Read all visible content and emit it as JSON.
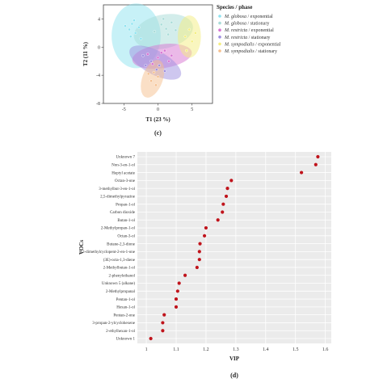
{
  "chart_data": [
    {
      "type": "scatter",
      "panel_label": "(c)",
      "xlabel": "T1 (23 %)",
      "ylabel": "T2 (11 %)",
      "xlim": [
        -8,
        8
      ],
      "ylim": [
        -8,
        6
      ],
      "x_ticks": [
        "-5",
        "0",
        "5"
      ],
      "y_ticks": [
        "4",
        "0",
        "-4",
        "-8"
      ],
      "legend_title": "Species / phase",
      "legend_position": "right",
      "series": [
        {
          "name_italic": "M. globosa",
          "name_rest": " / exponential",
          "color": "#8fe3f0",
          "points": [
            [
              -4.8,
              3.0
            ],
            [
              -4.2,
              2.5
            ],
            [
              -3.8,
              3.3
            ],
            [
              -3.3,
              2.0
            ],
            [
              -2.8,
              2.8
            ],
            [
              -4.0,
              1.5
            ],
            [
              -3.5,
              3.8
            ],
            [
              -2.5,
              1.2
            ]
          ],
          "ellipse": {
            "cx": -3.2,
            "cy": 1.6,
            "rx": 3.6,
            "ry": 4.6,
            "rot": 0
          }
        },
        {
          "name_italic": "M. globosa",
          "name_rest": " / stationary",
          "color": "#a8dcd8",
          "points": [
            [
              0.5,
              3.2
            ],
            [
              1.2,
              2.6
            ],
            [
              2.0,
              3.5
            ],
            [
              1.5,
              1.8
            ],
            [
              -0.5,
              2.2
            ],
            [
              2.6,
              2.4
            ],
            [
              0.8,
              4.0
            ]
          ],
          "ellipse": {
            "cx": 0.8,
            "cy": 2.2,
            "rx": 4.4,
            "ry": 2.4,
            "rot": -12
          }
        },
        {
          "name_italic": "M. restricta",
          "name_rest": " / exponential",
          "color": "#d873d2",
          "points": [
            [
              -1.5,
              -1.0
            ],
            [
              0.0,
              -1.5
            ],
            [
              1.0,
              -0.5
            ],
            [
              2.0,
              -1.2
            ],
            [
              -0.8,
              -2.4
            ],
            [
              1.6,
              -2.0
            ],
            [
              0.5,
              -0.8
            ]
          ],
          "ellipse": {
            "cx": 0.6,
            "cy": -1.3,
            "rx": 4.4,
            "ry": 1.7,
            "rot": -8
          }
        },
        {
          "name_italic": "M. restricta",
          "name_rest": " / stationary",
          "color": "#9e8fe0",
          "points": [
            [
              -2.2,
              -1.2
            ],
            [
              -1.0,
              -2.0
            ],
            [
              -0.2,
              -3.2
            ],
            [
              1.0,
              -3.4
            ],
            [
              -1.8,
              -2.6
            ],
            [
              0.2,
              -2.6
            ]
          ],
          "ellipse": {
            "cx": -0.4,
            "cy": -2.2,
            "rx": 4.2,
            "ry": 1.7,
            "rot": 28
          }
        },
        {
          "name_italic": "M. sympodialis",
          "name_rest": " / exponential",
          "color": "#f4ee80",
          "points": [
            [
              4.0,
              1.5
            ],
            [
              4.6,
              2.5
            ],
            [
              5.0,
              0.8
            ],
            [
              4.2,
              -0.5
            ],
            [
              5.5,
              2.0
            ]
          ],
          "ellipse": {
            "cx": 4.6,
            "cy": 1.5,
            "rx": 1.7,
            "ry": 3.0,
            "rot": 0
          }
        },
        {
          "name_italic": "M. sympodialis",
          "name_rest": " / stationary",
          "color": "#f5bf8e",
          "points": [
            [
              -1.0,
              -4.8
            ],
            [
              -0.6,
              -3.6
            ],
            [
              0.0,
              -4.2
            ],
            [
              -1.4,
              -3.8
            ],
            [
              -0.3,
              -5.4
            ]
          ],
          "ellipse": {
            "cx": -0.8,
            "cy": -4.5,
            "rx": 1.5,
            "ry": 2.8,
            "rot": 20
          }
        }
      ]
    },
    {
      "type": "scatter",
      "panel_label": "(d)",
      "xlabel": "VIP",
      "ylabel": "VOCs",
      "xlim": [
        0.97,
        1.62
      ],
      "x_ticks": [
        1.0,
        1.1,
        1.2,
        1.3,
        1.4,
        1.5,
        1.6
      ],
      "grid": true,
      "marker_color": "#c0141c",
      "categories": [
        "Unknown 7",
        "Non-3-en-1-ol",
        "Heptyl acetate",
        "Octan-3-one",
        "3-methylbut-3-en-1-ol",
        "2,5-dimethylpyrazine",
        "Propan-1-ol",
        "Carbon dioxide",
        "Butan-1-ol",
        "2-Methylpropan-1-ol",
        "Octan-3-ol",
        "Butane-2,3-dione",
        "2,3-dimethylcyclopent-2-en-1-one",
        "(3E)-octa-1,3-diene",
        "2-Methylbutan-1-ol",
        "2-phenylethanol",
        "Unknown 5 (alkane)",
        "2-Methylpropanal",
        "Pentan-1-ol",
        "Hexan-1-ol",
        "Pentan-2-one",
        "3-propan-2-ylcyclohexene",
        "2-ethylhexan-1-ol",
        "Unknown 1"
      ],
      "values": [
        1.575,
        1.568,
        1.52,
        1.285,
        1.272,
        1.268,
        1.258,
        1.255,
        1.24,
        1.2,
        1.195,
        1.18,
        1.178,
        1.178,
        1.17,
        1.13,
        1.11,
        1.105,
        1.1,
        1.1,
        1.06,
        1.055,
        1.055,
        1.015
      ]
    }
  ]
}
